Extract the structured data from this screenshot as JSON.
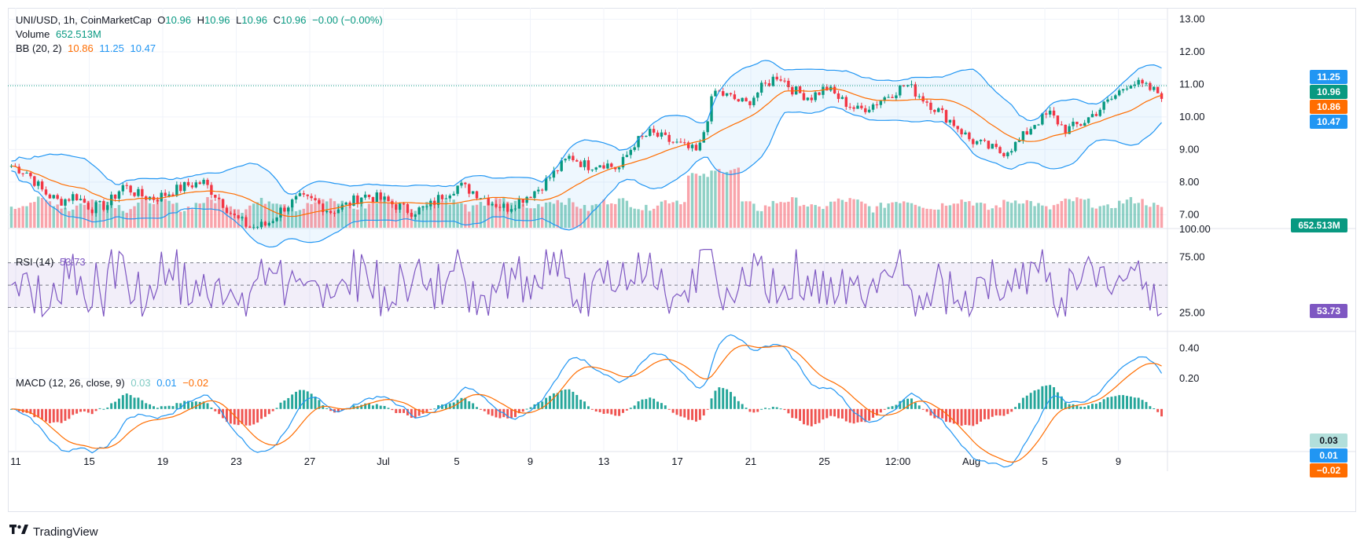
{
  "header": {
    "symbol": "UNI/USD, 1h, CoinMarketCap",
    "o_label": "O",
    "o_value": "10.96",
    "h_label": "H",
    "h_value": "10.96",
    "l_label": "L",
    "l_value": "10.96",
    "c_label": "C",
    "c_value": "10.96",
    "change": "−0.00 (−0.00%)",
    "volume_label": "Volume",
    "volume_value": "652.513M",
    "bb_label": "BB (20, 2)",
    "bb_mid": "10.86",
    "bb_upper": "11.25",
    "bb_lower": "10.47"
  },
  "rsi_legend": {
    "label": "RSI (14)",
    "value": "53.73"
  },
  "macd_legend": {
    "label": "MACD (12, 26, close, 9)",
    "hist": "0.03",
    "macd": "0.01",
    "signal": "−0.02"
  },
  "price_tags": {
    "bb_upper": "11.25",
    "close": "10.96",
    "bb_mid": "10.86",
    "bb_lower": "10.47",
    "volume": "652.513M",
    "rsi": "53.73",
    "macd_hist": "0.03",
    "macd": "0.01",
    "macd_signal": "−0.02"
  },
  "colors": {
    "up": "#089981",
    "down": "#f23645",
    "bb_band": "#2196f3",
    "bb_basis": "#ff6d00",
    "rsi": "#7e57c2",
    "macd": "#2196f3",
    "signal": "#ff6d00",
    "grid": "#f0f3fa"
  },
  "footer": {
    "brand": "TradingView",
    "logo_icon": "tradingview-logo-icon"
  },
  "chart_data": [
    {
      "type": "candlestick",
      "title": "UNI/USD, 1h, CoinMarketCap",
      "x_ticks": [
        "11",
        "15",
        "19",
        "23",
        "27",
        "Jul",
        "5",
        "9",
        "13",
        "17",
        "21",
        "25",
        "12:00",
        "Aug",
        "5",
        "9"
      ],
      "y_ticks": [
        "13.00",
        "12.00",
        "11.00",
        "10.00",
        "9.00",
        "8.00",
        "7.00"
      ],
      "ylim": [
        6.6,
        13.3
      ],
      "close_series": [
        8.5,
        8.3,
        7.7,
        7.4,
        7.6,
        7.2,
        7.3,
        7.9,
        7.6,
        7.5,
        7.7,
        7.9,
        8.0,
        7.5,
        6.9,
        6.6,
        6.7,
        7.2,
        7.5,
        7.4,
        7.1,
        7.3,
        7.6,
        7.5,
        7.3,
        7.1,
        7.2,
        7.6,
        7.9,
        7.7,
        7.4,
        7.2,
        7.5,
        7.8,
        8.3,
        8.8,
        8.5,
        8.6,
        8.4,
        9.2,
        9.5,
        9.3,
        9.1,
        8.9,
        10.8,
        10.6,
        10.4,
        10.9,
        11.3,
        10.8,
        10.6,
        10.9,
        10.5,
        10.2,
        10.4,
        10.7,
        11.0,
        10.6,
        10.2,
        9.8,
        9.3,
        9.1,
        8.9,
        9.2,
        9.8,
        10.1,
        9.6,
        9.8,
        10.2,
        10.6,
        11.1,
        10.9,
        10.7
      ],
      "bollinger_bands": {
        "period": 20,
        "stddev": 2,
        "basis": 10.86,
        "upper": 11.25,
        "lower": 10.47
      },
      "volume": {
        "last": "652.513M"
      }
    },
    {
      "type": "line",
      "title": "RSI (14)",
      "y_ticks": [
        "100.00",
        "75.00",
        "25.00"
      ],
      "ylim": [
        10,
        100
      ],
      "bands": [
        30,
        50,
        70
      ],
      "last": 53.73
    },
    {
      "type": "line",
      "title": "MACD (12, 26, close, 9)",
      "y_ticks": [
        "0.40",
        "0.20"
      ],
      "ylim": [
        -0.28,
        0.5
      ],
      "last": {
        "histogram": 0.03,
        "macd": 0.01,
        "signal": -0.02
      }
    }
  ]
}
